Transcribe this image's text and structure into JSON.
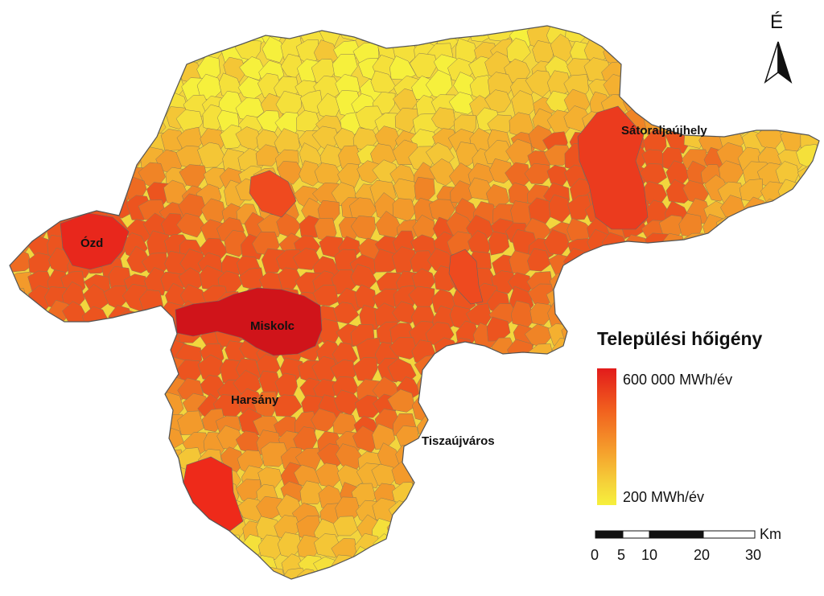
{
  "cities": {
    "ozd": "Ózd",
    "miskolc": "Miskolc",
    "satoraljaujhely": "Sátoraljaújhely",
    "harsany": "Harsány",
    "tiszaujvaros": "Tiszaújváros"
  },
  "legend": {
    "title": "Települési hőigény",
    "max_label": "600 000 MWh/év",
    "min_label": "200 MWh/év",
    "color_high": "#e21b1b",
    "color_low": "#f6f03c"
  },
  "north_arrow": {
    "letter": "É",
    "icon": "north-arrow-icon"
  },
  "scale_bar": {
    "unit": "Km",
    "ticks": [
      "0",
      "5",
      "10",
      "20",
      "30"
    ]
  }
}
